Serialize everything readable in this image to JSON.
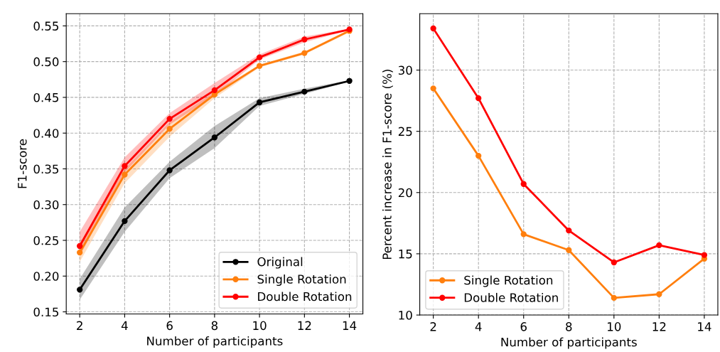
{
  "chart_data": [
    {
      "type": "line",
      "xlabel": "Number of participants",
      "ylabel": "F1-score",
      "x": [
        2,
        4,
        6,
        8,
        10,
        12,
        14
      ],
      "xlim": [
        1.4,
        14.6
      ],
      "xticks": [
        2,
        4,
        6,
        8,
        10,
        12,
        14
      ],
      "ylim": [
        0.147,
        0.567
      ],
      "yticks": [
        {
          "value": 0.15,
          "label": "0.15"
        },
        {
          "value": 0.2,
          "label": "0.20"
        },
        {
          "value": 0.25,
          "label": "0.25"
        },
        {
          "value": 0.3,
          "label": "0.30"
        },
        {
          "value": 0.35,
          "label": "0.35"
        },
        {
          "value": 0.4,
          "label": "0.40"
        },
        {
          "value": 0.45,
          "label": "0.45"
        },
        {
          "value": 0.5,
          "label": "0.50"
        },
        {
          "value": 0.55,
          "label": "0.55"
        }
      ],
      "grid": true,
      "legend": "bottom right",
      "marker": "circle",
      "line_style": "solid",
      "series": [
        {
          "name": "Original",
          "color": "#000000",
          "values": [
            0.181,
            0.277,
            0.348,
            0.394,
            0.443,
            0.458,
            0.473
          ],
          "lower": [
            0.167,
            0.262,
            0.337,
            0.379,
            0.438,
            0.455,
            0.472
          ],
          "upper": [
            0.196,
            0.296,
            0.36,
            0.41,
            0.449,
            0.462,
            0.474
          ]
        },
        {
          "name": "Single Rotation",
          "color": "#ff7f0e",
          "values": [
            0.233,
            0.342,
            0.406,
            0.454,
            0.494,
            0.512,
            0.543
          ],
          "lower": [
            0.22,
            0.33,
            0.395,
            0.449,
            0.492,
            0.51,
            0.541
          ],
          "upper": [
            0.246,
            0.35,
            0.415,
            0.458,
            0.496,
            0.514,
            0.545
          ]
        },
        {
          "name": "Double Rotation",
          "color": "#ff0000",
          "values": [
            0.242,
            0.354,
            0.42,
            0.46,
            0.506,
            0.531,
            0.545
          ],
          "lower": [
            0.228,
            0.345,
            0.412,
            0.452,
            0.503,
            0.527,
            0.544
          ],
          "upper": [
            0.262,
            0.366,
            0.428,
            0.47,
            0.51,
            0.535,
            0.546
          ]
        }
      ]
    },
    {
      "type": "line",
      "xlabel": "Number of participants",
      "ylabel": "Percent increase in F1-score (%)",
      "x": [
        2,
        4,
        6,
        8,
        10,
        12,
        14
      ],
      "xlim": [
        1.4,
        14.6
      ],
      "xticks": [
        2,
        4,
        6,
        8,
        10,
        12,
        14
      ],
      "ylim": [
        10,
        34.6
      ],
      "yticks": [
        10,
        15,
        20,
        25,
        30
      ],
      "grid": true,
      "legend": "bottom left",
      "marker": "circle",
      "line_style": "solid",
      "series": [
        {
          "name": "Single Rotation",
          "color": "#ff7f0e",
          "values": [
            28.5,
            23.0,
            16.6,
            15.3,
            11.4,
            11.7,
            14.6
          ]
        },
        {
          "name": "Double Rotation",
          "color": "#ff0000",
          "values": [
            33.4,
            27.7,
            20.7,
            16.9,
            14.3,
            15.7,
            14.9
          ]
        }
      ]
    }
  ]
}
